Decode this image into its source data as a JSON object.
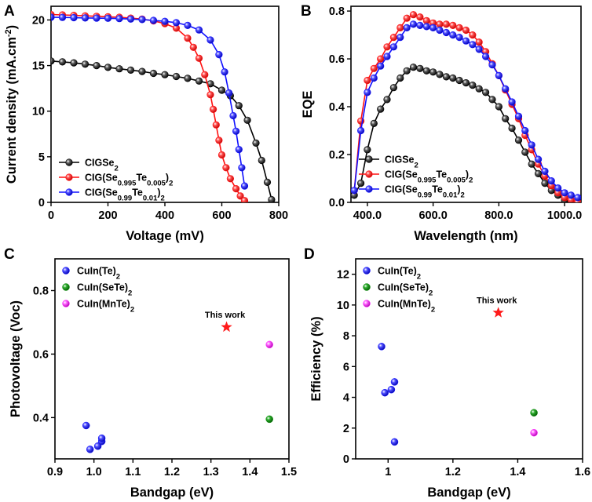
{
  "colors": {
    "black": "#000000",
    "red": "#ff1010",
    "blue": "#1010ff",
    "green": "#0a8a0a",
    "magenta": "#ff30ff",
    "star": "#ff1a1a"
  },
  "chart_data": [
    {
      "id": "A",
      "panel_label": "A",
      "type": "line",
      "xlabel": "Voltage (mV)",
      "ylabel": "Current density (mA.cm",
      "ylabel_sup": "-2",
      "ylabel_close": ")",
      "xlim": [
        0,
        800
      ],
      "ylim": [
        0,
        21.5
      ],
      "xticks": [
        0,
        200,
        400,
        600,
        800
      ],
      "yticks": [
        0,
        5,
        10,
        15,
        20
      ],
      "legend_position": "bottom-left",
      "series": [
        {
          "name": "CIGSe",
          "sub": "2",
          "after": "",
          "color": "black",
          "x": [
            0,
            40,
            80,
            120,
            160,
            200,
            240,
            280,
            320,
            360,
            400,
            440,
            480,
            520,
            560,
            600,
            630,
            660,
            690,
            720,
            740,
            760,
            775
          ],
          "y": [
            15.5,
            15.4,
            15.3,
            15.15,
            15.0,
            14.8,
            14.65,
            14.5,
            14.35,
            14.15,
            14.0,
            13.8,
            13.6,
            13.3,
            13.0,
            12.3,
            11.7,
            10.6,
            9.0,
            6.5,
            4.6,
            2.2,
            0.3
          ]
        },
        {
          "name": "CIG(Se",
          "sub": "0.995",
          "mid": "Te",
          "sub2": "0.005",
          "after": ")",
          "sub3": "2",
          "color": "red",
          "x": [
            0,
            40,
            80,
            120,
            160,
            200,
            240,
            280,
            320,
            360,
            400,
            440,
            480,
            500,
            520,
            540,
            560,
            570,
            580,
            590,
            600,
            615,
            630,
            650,
            665,
            680
          ],
          "y": [
            20.6,
            20.55,
            20.5,
            20.45,
            20.4,
            20.35,
            20.3,
            20.2,
            20.1,
            19.9,
            19.6,
            19.1,
            18.0,
            17.0,
            15.8,
            14.0,
            11.8,
            10.2,
            8.5,
            6.8,
            5.2,
            3.8,
            2.6,
            1.5,
            0.7,
            0.2
          ]
        },
        {
          "name": "CIG(Se",
          "sub": "0.99",
          "mid": "Te",
          "sub2": "0.01",
          "after": ")",
          "sub3": "2",
          "color": "blue",
          "x": [
            0,
            40,
            80,
            120,
            160,
            200,
            240,
            280,
            320,
            360,
            400,
            440,
            480,
            520,
            560,
            590,
            610,
            625,
            640,
            650,
            660,
            670,
            680
          ],
          "y": [
            20.3,
            20.28,
            20.25,
            20.22,
            20.2,
            20.18,
            20.15,
            20.1,
            20.05,
            19.95,
            19.85,
            19.7,
            19.4,
            18.9,
            17.8,
            16.2,
            14.3,
            12.0,
            9.5,
            7.8,
            5.8,
            3.8,
            1.8
          ]
        }
      ]
    },
    {
      "id": "B",
      "panel_label": "B",
      "type": "line",
      "xlabel": "Wavelength (nm)",
      "ylabel": "EQE",
      "xlim": [
        350,
        1050
      ],
      "ylim": [
        0,
        0.82
      ],
      "xticks": [
        400,
        600,
        800,
        1000
      ],
      "yticks": [
        0.0,
        0.2,
        0.4,
        0.6,
        0.8
      ],
      "legend_position": "bottom-left",
      "series": [
        {
          "name": "CIGSe",
          "sub": "2",
          "after": "",
          "color": "black",
          "x": [
            360,
            380,
            400,
            420,
            440,
            460,
            480,
            500,
            520,
            540,
            560,
            580,
            600,
            620,
            640,
            660,
            680,
            700,
            720,
            740,
            760,
            780,
            800,
            820,
            840,
            860,
            880,
            900,
            920,
            940,
            960,
            980,
            1000,
            1020
          ],
          "y": [
            0.03,
            0.08,
            0.22,
            0.33,
            0.39,
            0.43,
            0.48,
            0.52,
            0.55,
            0.565,
            0.56,
            0.55,
            0.545,
            0.535,
            0.525,
            0.52,
            0.51,
            0.5,
            0.49,
            0.475,
            0.46,
            0.43,
            0.4,
            0.35,
            0.31,
            0.26,
            0.21,
            0.16,
            0.12,
            0.08,
            0.05,
            0.03,
            0.01,
            0.0
          ]
        },
        {
          "name": "CIG(Se",
          "sub": "0.995",
          "mid": "Te",
          "sub2": "0.005",
          "after": ")",
          "sub3": "2",
          "color": "red",
          "x": [
            360,
            380,
            400,
            420,
            440,
            460,
            480,
            500,
            520,
            540,
            560,
            580,
            600,
            620,
            640,
            660,
            680,
            700,
            720,
            740,
            760,
            780,
            800,
            820,
            840,
            860,
            880,
            900,
            920,
            940,
            960,
            980,
            1000,
            1020,
            1040
          ],
          "y": [
            0.05,
            0.34,
            0.51,
            0.56,
            0.6,
            0.65,
            0.69,
            0.73,
            0.77,
            0.785,
            0.775,
            0.76,
            0.75,
            0.745,
            0.745,
            0.74,
            0.73,
            0.72,
            0.7,
            0.67,
            0.63,
            0.58,
            0.53,
            0.47,
            0.41,
            0.35,
            0.28,
            0.22,
            0.16,
            0.11,
            0.07,
            0.04,
            0.02,
            0.01,
            0.0
          ]
        },
        {
          "name": "CIG(Se",
          "sub": "0.99",
          "mid": "Te",
          "sub2": "0.01",
          "after": ")",
          "sub3": "2",
          "color": "blue",
          "x": [
            360,
            380,
            400,
            420,
            440,
            460,
            480,
            500,
            520,
            540,
            560,
            580,
            600,
            620,
            640,
            660,
            680,
            700,
            720,
            740,
            760,
            780,
            800,
            820,
            840,
            860,
            880,
            900,
            920,
            940,
            960,
            980,
            1000,
            1020,
            1040
          ],
          "y": [
            0.05,
            0.3,
            0.46,
            0.52,
            0.57,
            0.61,
            0.65,
            0.69,
            0.73,
            0.745,
            0.74,
            0.735,
            0.73,
            0.72,
            0.71,
            0.7,
            0.69,
            0.675,
            0.66,
            0.64,
            0.61,
            0.575,
            0.53,
            0.475,
            0.42,
            0.36,
            0.3,
            0.24,
            0.18,
            0.13,
            0.09,
            0.06,
            0.04,
            0.03,
            0.02
          ]
        }
      ]
    },
    {
      "id": "C",
      "panel_label": "C",
      "type": "scatter",
      "xlabel": "Bandgap (eV)",
      "ylabel": "Photovoltage (Voc)",
      "xlim": [
        0.9,
        1.5
      ],
      "ylim": [
        0.27,
        0.9
      ],
      "xticks": [
        0.9,
        1.0,
        1.1,
        1.2,
        1.3,
        1.4,
        1.5
      ],
      "yticks": [
        0.4,
        0.6,
        0.8
      ],
      "legend_position": "top-left",
      "series": [
        {
          "name": "CuIn(Te)",
          "sub": "2",
          "color": "blue",
          "x": [
            0.98,
            0.99,
            1.01,
            1.02,
            1.02
          ],
          "y": [
            0.375,
            0.3,
            0.31,
            0.325,
            0.335
          ]
        },
        {
          "name": "CuIn(SeTe)",
          "sub": "2",
          "color": "green",
          "x": [
            1.45
          ],
          "y": [
            0.395
          ]
        },
        {
          "name": "CuIn(MnTe)",
          "sub": "2",
          "color": "magenta",
          "x": [
            1.45
          ],
          "y": [
            0.63
          ]
        }
      ],
      "highlight": {
        "label": "This work",
        "x": 1.34,
        "y": 0.685
      }
    },
    {
      "id": "D",
      "panel_label": "D",
      "type": "scatter",
      "xlabel": "Bandgap (eV)",
      "ylabel": "Efficiency (%)",
      "xlim": [
        0.9,
        1.6
      ],
      "ylim": [
        0,
        13
      ],
      "xticks": [
        1.0,
        1.2,
        1.4,
        1.6
      ],
      "yticks": [
        0,
        2,
        4,
        6,
        8,
        10,
        12
      ],
      "legend_position": "top-left",
      "series": [
        {
          "name": "CuIn(Te)",
          "sub": "2",
          "color": "blue",
          "x": [
            0.98,
            0.99,
            1.01,
            1.02,
            1.02
          ],
          "y": [
            7.3,
            4.3,
            4.5,
            5.0,
            1.1
          ]
        },
        {
          "name": "CuIn(SeTe)",
          "sub": "2",
          "color": "green",
          "x": [
            1.45
          ],
          "y": [
            3.0
          ]
        },
        {
          "name": "CuIn(MnTe)",
          "sub": "2",
          "color": "magenta",
          "x": [
            1.45
          ],
          "y": [
            1.7
          ]
        }
      ],
      "highlight": {
        "label": "This work",
        "x": 1.34,
        "y": 9.5
      }
    }
  ]
}
